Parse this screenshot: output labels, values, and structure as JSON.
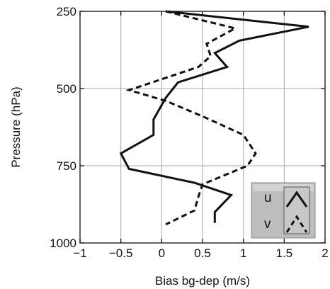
{
  "chart_data": {
    "type": "line",
    "orientation": "vertical-profile",
    "xlabel": "Bias bg-dep (m/s)",
    "ylabel": "Pressure (hPa)",
    "xlim": [
      -1,
      2
    ],
    "ylim": [
      250,
      1000
    ],
    "y_inverted": true,
    "grid": true,
    "x_ticks": [
      "−1",
      "−0.5",
      "0",
      "0.5",
      "1",
      "1.5",
      "2"
    ],
    "x_tick_values": [
      -1,
      -0.5,
      0,
      0.5,
      1,
      1.5,
      2
    ],
    "y_ticks": [
      "250",
      "500",
      "750",
      "1000"
    ],
    "y_tick_values": [
      250,
      500,
      750,
      1000
    ],
    "legend_position": "bottom-right",
    "series": [
      {
        "name": "u",
        "line_style": "solid",
        "color": "#111111",
        "points": [
          {
            "x": 0.05,
            "y": 250
          },
          {
            "x": 1.8,
            "y": 300
          },
          {
            "x": 0.95,
            "y": 345
          },
          {
            "x": 0.65,
            "y": 385
          },
          {
            "x": 0.8,
            "y": 430
          },
          {
            "x": 0.2,
            "y": 480
          },
          {
            "x": 0.05,
            "y": 530
          },
          {
            "x": -0.1,
            "y": 600
          },
          {
            "x": -0.1,
            "y": 650
          },
          {
            "x": -0.5,
            "y": 710
          },
          {
            "x": -0.4,
            "y": 760
          },
          {
            "x": 0.4,
            "y": 805
          },
          {
            "x": 0.85,
            "y": 845
          },
          {
            "x": 0.65,
            "y": 900
          },
          {
            "x": 0.65,
            "y": 935
          }
        ]
      },
      {
        "name": "v",
        "line_style": "dashed",
        "color": "#111111",
        "points": [
          {
            "x": 0.05,
            "y": 250
          },
          {
            "x": 0.9,
            "y": 305
          },
          {
            "x": 0.55,
            "y": 355
          },
          {
            "x": 0.6,
            "y": 395
          },
          {
            "x": 0.45,
            "y": 430
          },
          {
            "x": -0.4,
            "y": 505
          },
          {
            "x": 0.05,
            "y": 540
          },
          {
            "x": 0.5,
            "y": 590
          },
          {
            "x": 1.0,
            "y": 650
          },
          {
            "x": 1.15,
            "y": 710
          },
          {
            "x": 1.05,
            "y": 750
          },
          {
            "x": 0.5,
            "y": 810
          },
          {
            "x": 0.45,
            "y": 850
          },
          {
            "x": 0.4,
            "y": 895
          },
          {
            "x": 0.05,
            "y": 940
          }
        ]
      }
    ]
  }
}
